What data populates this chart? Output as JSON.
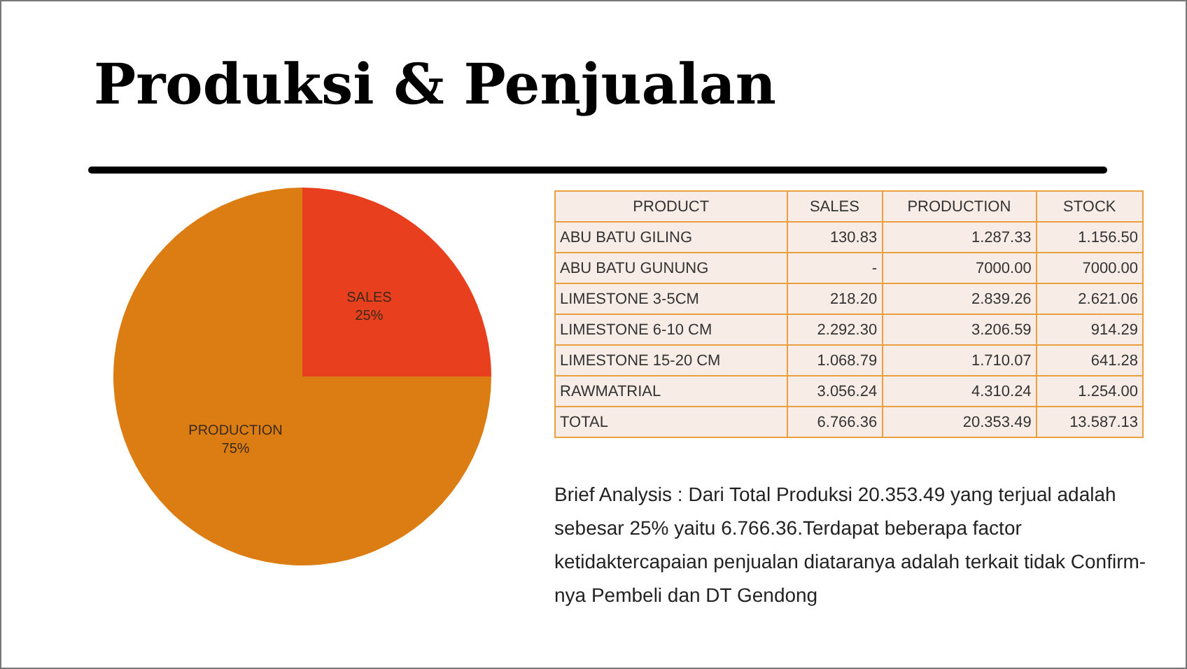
{
  "chart_data": [
    {
      "type": "pie",
      "title": "Produksi & Penjualan",
      "categories": [
        "SALES",
        "PRODUCTION"
      ],
      "values": [
        25,
        75
      ],
      "colors": [
        "#e8401f",
        "#db7d12"
      ],
      "value_labels": [
        "25%",
        "75%"
      ],
      "legend": false
    },
    {
      "type": "other",
      "annotations": [
        "PRODUCT",
        "SALES",
        "PRODUCTION",
        "STOCK",
        "ABU BATU GILING",
        "130.83",
        "1.287.33",
        "1.156.50",
        "ABU BATU GUNUNG",
        "-",
        "7000.00",
        "7000.00",
        "LIMESTONE 3-5CM",
        "218.20",
        "2.839.26",
        "2.621.06",
        "LIMESTONE 6-10 CM",
        "2.292.30",
        "3.206.59",
        "914.29",
        "LIMESTONE 15-20 CM",
        "1.068.79",
        "1.710.07",
        "641.28",
        "RAWMATRIAL",
        "3.056.24",
        "4.310.24",
        "1.254.00",
        "TOTAL",
        "6.766.36",
        "20.353.49",
        "13.587.13"
      ]
    },
    {
      "type": "other",
      "annotations": [
        "Brief Analysis : Dari Total Produksi 20.353.49 yang terjual adalah sebesar 25% yaitu 6.766.36.Terdapat beberapa factor ketidaktercapaian penjualan diataranya adalah terkait tidak Confirm-nya Pembeli dan DT Gendong"
      ]
    }
  ]
}
